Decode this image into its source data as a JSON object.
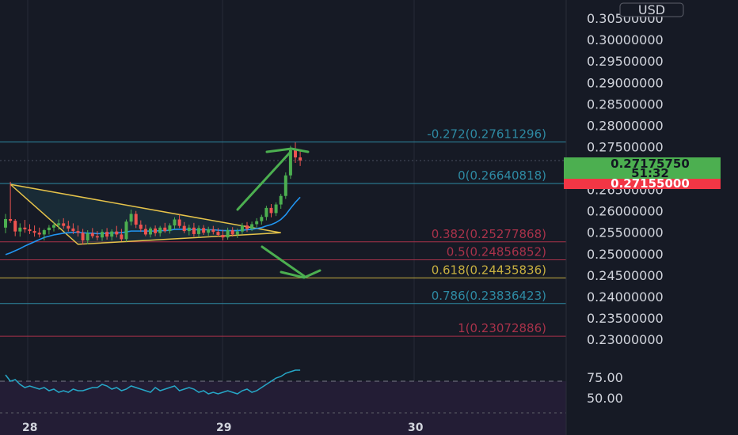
{
  "currency_badge": "USD",
  "price_axis_labels": [
    "0.30500000",
    "0.30000000",
    "0.29500000",
    "0.29000000",
    "0.28500000",
    "0.28000000",
    "0.27500000",
    "0.26500000",
    "0.26000000",
    "0.25500000",
    "0.25000000",
    "0.24500000",
    "0.24000000",
    "0.23500000",
    "0.23000000"
  ],
  "rsi_axis_labels": [
    "75.00",
    "50.00"
  ],
  "date_labels": [
    "28",
    "29",
    "30"
  ],
  "current_price": {
    "value": "0.27175750",
    "countdown": "51:32",
    "color": "#4caf50"
  },
  "prev_close": {
    "value": "0.27155000",
    "color": "#f23645"
  },
  "fib_levels": [
    {
      "label": "-0.272(0.27611296)",
      "price": 0.27611296,
      "color": "#2e8aa3"
    },
    {
      "label": "0(0.26640818)",
      "price": 0.26640818,
      "color": "#2e8aa3"
    },
    {
      "label": "0.382(0.25277868)",
      "price": 0.25277868,
      "color": "#a8324a"
    },
    {
      "label": "0.5(0.24856852)",
      "price": 0.24856852,
      "color": "#a8324a"
    },
    {
      "label": "0.618(0.24435836)",
      "price": 0.24435836,
      "color": "#c8b040"
    },
    {
      "label": "0.786(0.23836423)",
      "price": 0.23836423,
      "color": "#2e8aa3"
    },
    {
      "label": "1(0.23072886)",
      "price": 0.23072886,
      "color": "#a8324a"
    }
  ],
  "colors": {
    "background": "#161a25",
    "up": "#4caf50",
    "down": "#ef5350",
    "ma": "#2196f3",
    "triangle": "#e6c34a",
    "rsi": "#26a7c7",
    "rsi_band": "#2a1f3a"
  },
  "chart_data": {
    "type": "candlestick",
    "y_range": [
      0.2265,
      0.3065
    ],
    "rsi_range": [
      40,
      80
    ],
    "rsi_levels": [
      70,
      50,
      30
    ],
    "candles": [
      [
        0.2561,
        0.2593,
        0.2548,
        0.2581
      ],
      [
        0.2581,
        0.2668,
        0.2572,
        0.2577
      ],
      [
        0.2577,
        0.2581,
        0.2541,
        0.2552
      ],
      [
        0.2552,
        0.2571,
        0.254,
        0.2561
      ],
      [
        0.2561,
        0.2579,
        0.2549,
        0.2557
      ],
      [
        0.2557,
        0.2569,
        0.2546,
        0.2553
      ],
      [
        0.2553,
        0.2566,
        0.254,
        0.2549
      ],
      [
        0.2549,
        0.2561,
        0.2538,
        0.2545
      ],
      [
        0.2545,
        0.2558,
        0.2531,
        0.2555
      ],
      [
        0.2555,
        0.2567,
        0.2545,
        0.2561
      ],
      [
        0.2561,
        0.2574,
        0.2552,
        0.2567
      ],
      [
        0.2567,
        0.258,
        0.2556,
        0.2571
      ],
      [
        0.2571,
        0.2583,
        0.2558,
        0.2565
      ],
      [
        0.2565,
        0.2577,
        0.2552,
        0.2559
      ],
      [
        0.2559,
        0.2571,
        0.2546,
        0.2553
      ],
      [
        0.2553,
        0.2566,
        0.254,
        0.2549
      ],
      [
        0.2549,
        0.2558,
        0.2521,
        0.2531
      ],
      [
        0.2531,
        0.2555,
        0.2522,
        0.2548
      ],
      [
        0.2548,
        0.256,
        0.2536,
        0.2541
      ],
      [
        0.2541,
        0.2553,
        0.2531,
        0.2538
      ],
      [
        0.2538,
        0.2557,
        0.253,
        0.2551
      ],
      [
        0.2551,
        0.256,
        0.2533,
        0.254
      ],
      [
        0.254,
        0.2557,
        0.2531,
        0.2552
      ],
      [
        0.2552,
        0.2565,
        0.2538,
        0.2545
      ],
      [
        0.2545,
        0.2558,
        0.2529,
        0.2534
      ],
      [
        0.2534,
        0.258,
        0.2528,
        0.2575
      ],
      [
        0.2575,
        0.2603,
        0.2566,
        0.2593
      ],
      [
        0.2593,
        0.26,
        0.256,
        0.2568
      ],
      [
        0.2568,
        0.2578,
        0.2551,
        0.2558
      ],
      [
        0.2558,
        0.2568,
        0.2541,
        0.2545
      ],
      [
        0.2545,
        0.2563,
        0.2538,
        0.2559
      ],
      [
        0.2559,
        0.2566,
        0.2541,
        0.2548
      ],
      [
        0.2548,
        0.2565,
        0.254,
        0.2561
      ],
      [
        0.2561,
        0.2572,
        0.2549,
        0.2553
      ],
      [
        0.2553,
        0.2571,
        0.2547,
        0.2566
      ],
      [
        0.2566,
        0.2585,
        0.2558,
        0.258
      ],
      [
        0.258,
        0.2591,
        0.256,
        0.2565
      ],
      [
        0.2565,
        0.2574,
        0.2548,
        0.2553
      ],
      [
        0.2553,
        0.2568,
        0.2543,
        0.2561
      ],
      [
        0.2561,
        0.2572,
        0.254,
        0.2546
      ],
      [
        0.2546,
        0.2566,
        0.2538,
        0.256
      ],
      [
        0.256,
        0.2567,
        0.2544,
        0.2549
      ],
      [
        0.2549,
        0.2563,
        0.2542,
        0.2557
      ],
      [
        0.2557,
        0.2565,
        0.2545,
        0.2551
      ],
      [
        0.2551,
        0.256,
        0.254,
        0.2544
      ],
      [
        0.2544,
        0.2556,
        0.2531,
        0.2538
      ],
      [
        0.2538,
        0.2561,
        0.2533,
        0.2555
      ],
      [
        0.2555,
        0.2562,
        0.254,
        0.2545
      ],
      [
        0.2545,
        0.2559,
        0.2537,
        0.2552
      ],
      [
        0.2552,
        0.2572,
        0.2546,
        0.2566
      ],
      [
        0.2566,
        0.2574,
        0.2551,
        0.2558
      ],
      [
        0.2558,
        0.2575,
        0.2553,
        0.2569
      ],
      [
        0.2569,
        0.2583,
        0.2561,
        0.2576
      ],
      [
        0.2576,
        0.2591,
        0.2568,
        0.2586
      ],
      [
        0.2586,
        0.2612,
        0.2578,
        0.2607
      ],
      [
        0.2607,
        0.2616,
        0.2585,
        0.2595
      ],
      [
        0.2595,
        0.262,
        0.2588,
        0.2615
      ],
      [
        0.2615,
        0.264,
        0.2605,
        0.2635
      ],
      [
        0.2635,
        0.269,
        0.2628,
        0.2683
      ],
      [
        0.2683,
        0.2752,
        0.2675,
        0.2742
      ],
      [
        0.2742,
        0.276,
        0.2712,
        0.2725
      ],
      [
        0.2725,
        0.2743,
        0.2705,
        0.2718
      ]
    ],
    "ma": [
      0.2498,
      0.2502,
      0.2507,
      0.2512,
      0.2518,
      0.2523,
      0.2528,
      0.2533,
      0.2538,
      0.2541,
      0.2544,
      0.2546,
      0.2548,
      0.2549,
      0.255,
      0.255,
      0.2549,
      0.2548,
      0.2548,
      0.2547,
      0.2547,
      0.2548,
      0.2548,
      0.2549,
      0.2549,
      0.2551,
      0.2553,
      0.2553,
      0.2553,
      0.2553,
      0.2553,
      0.2553,
      0.2554,
      0.2554,
      0.2555,
      0.2557,
      0.2557,
      0.2557,
      0.2557,
      0.2556,
      0.2556,
      0.2556,
      0.2556,
      0.2556,
      0.2555,
      0.2554,
      0.2554,
      0.2554,
      0.2554,
      0.2555,
      0.2556,
      0.2557,
      0.2559,
      0.2561,
      0.2565,
      0.2568,
      0.2573,
      0.258,
      0.2591,
      0.2606,
      0.262,
      0.2632
    ],
    "rsi": [
      74,
      70,
      71,
      68,
      66,
      67,
      66,
      65,
      66,
      64,
      65,
      63,
      64,
      63,
      65,
      64,
      64,
      65,
      66,
      66,
      68,
      67,
      65,
      66,
      64,
      65,
      67,
      66,
      65,
      64,
      63,
      66,
      64,
      65,
      66,
      67,
      64,
      65,
      66,
      65,
      63,
      64,
      62,
      63,
      62,
      63,
      64,
      63,
      62,
      64,
      65,
      63,
      64,
      66,
      68,
      70,
      72,
      73,
      75,
      76,
      77,
      77
    ]
  }
}
